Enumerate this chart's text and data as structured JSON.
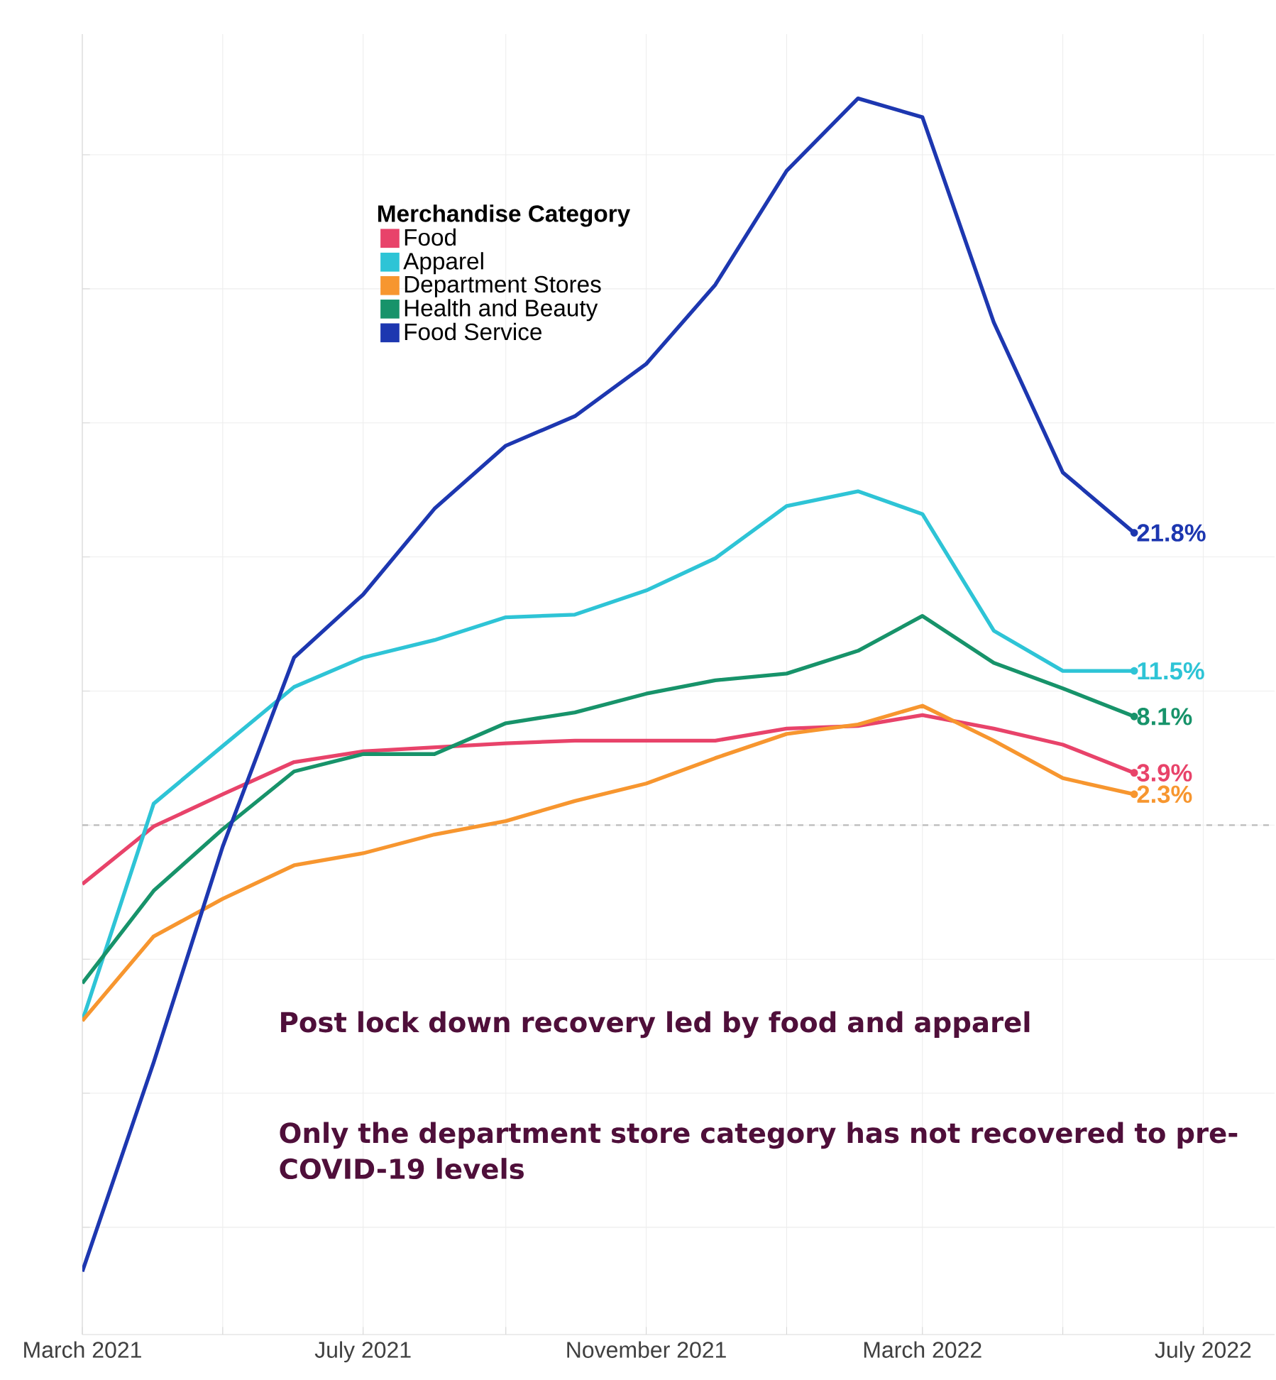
{
  "chart_data": {
    "type": "line",
    "legend_title": "Merchandise Category",
    "x": [
      "2021-03",
      "2021-04",
      "2021-05",
      "2021-06",
      "2021-07",
      "2021-08",
      "2021-09",
      "2021-10",
      "2021-11",
      "2021-12",
      "2022-01",
      "2022-02",
      "2022-03",
      "2022-04",
      "2022-05",
      "2022-06"
    ],
    "series": [
      {
        "name": "Food",
        "color": "#e8436a",
        "values": [
          -4.4,
          -0.1,
          2.3,
          4.7,
          5.5,
          5.8,
          6.1,
          6.3,
          6.3,
          6.3,
          7.2,
          7.4,
          8.2,
          7.2,
          6.0,
          3.9
        ],
        "value_labels": [
          null,
          null,
          null,
          null,
          null,
          null,
          null,
          null,
          null,
          null,
          null,
          null,
          null,
          null,
          null,
          "3.9%"
        ]
      },
      {
        "name": "Apparel",
        "color": "#2ec4d6",
        "values": [
          -14.6,
          1.6,
          5.9,
          10.3,
          12.5,
          13.8,
          15.5,
          15.7,
          17.5,
          19.9,
          23.8,
          24.9,
          23.2,
          14.5,
          11.5,
          11.5
        ],
        "value_labels": [
          null,
          null,
          null,
          null,
          null,
          null,
          null,
          null,
          null,
          null,
          null,
          null,
          null,
          null,
          null,
          "11.5%"
        ]
      },
      {
        "name": "Department Stores",
        "color": "#f7962f",
        "values": [
          -14.6,
          -8.3,
          -5.5,
          -3.0,
          -2.1,
          -0.7,
          0.3,
          1.8,
          3.1,
          5.0,
          6.8,
          7.5,
          8.9,
          6.3,
          3.5,
          2.3
        ],
        "value_labels": [
          null,
          null,
          null,
          null,
          null,
          null,
          null,
          null,
          null,
          null,
          null,
          null,
          null,
          null,
          null,
          "2.3%"
        ]
      },
      {
        "name": "Health and Beauty",
        "color": "#17936a",
        "values": [
          -11.8,
          -4.9,
          -0.3,
          4.0,
          5.3,
          5.3,
          7.6,
          8.4,
          9.8,
          10.8,
          11.3,
          13.0,
          15.6,
          12.1,
          10.2,
          8.1
        ],
        "value_labels": [
          null,
          null,
          null,
          null,
          null,
          null,
          null,
          null,
          null,
          null,
          null,
          null,
          null,
          null,
          null,
          "8.1%"
        ]
      },
      {
        "name": "Food Service",
        "color": "#1d37b0",
        "values": [
          -33.3,
          -17.7,
          -1.6,
          12.5,
          17.2,
          23.6,
          28.3,
          30.5,
          34.4,
          40.3,
          48.8,
          54.2,
          52.8,
          37.5,
          26.3,
          21.8
        ],
        "value_labels": [
          null,
          null,
          null,
          null,
          null,
          null,
          null,
          null,
          null,
          null,
          null,
          null,
          null,
          null,
          null,
          "21.8%"
        ]
      }
    ],
    "xlim": [
      "2021-03",
      "2022-08"
    ],
    "xticks": [
      {
        "value": "2021-03",
        "label": "March 2021"
      },
      {
        "value": "2021-05",
        "label": null
      },
      {
        "value": "2021-07",
        "label": "July 2021"
      },
      {
        "value": "2021-09",
        "label": null
      },
      {
        "value": "2021-11",
        "label": "November 2021"
      },
      {
        "value": "2022-01",
        "label": null
      },
      {
        "value": "2022-03",
        "label": "March 2022"
      },
      {
        "value": "2022-05",
        "label": null
      },
      {
        "value": "2022-07",
        "label": "July 2022"
      }
    ],
    "ylim": [
      -38,
      59
    ],
    "yticks": [
      {
        "value": -30,
        "label": null
      },
      {
        "value": -20,
        "label": null
      },
      {
        "value": -10,
        "label": null
      },
      {
        "value": 0,
        "label": null
      },
      {
        "value": 10,
        "label": null
      },
      {
        "value": 20,
        "label": null
      },
      {
        "value": 30,
        "label": null
      },
      {
        "value": 40,
        "label": null
      },
      {
        "value": 50,
        "label": null
      }
    ],
    "tick_labels": "x",
    "grid": true,
    "legend": "top left",
    "ref_lines": [
      {
        "axis": "y",
        "value": 0,
        "line_style": "dashed",
        "color": "#bbbbbb"
      }
    ],
    "annotations": [
      "Post lock down recovery led by food and apparel",
      "Only the department store category has not recovered to pre-COVID-19 levels"
    ]
  }
}
